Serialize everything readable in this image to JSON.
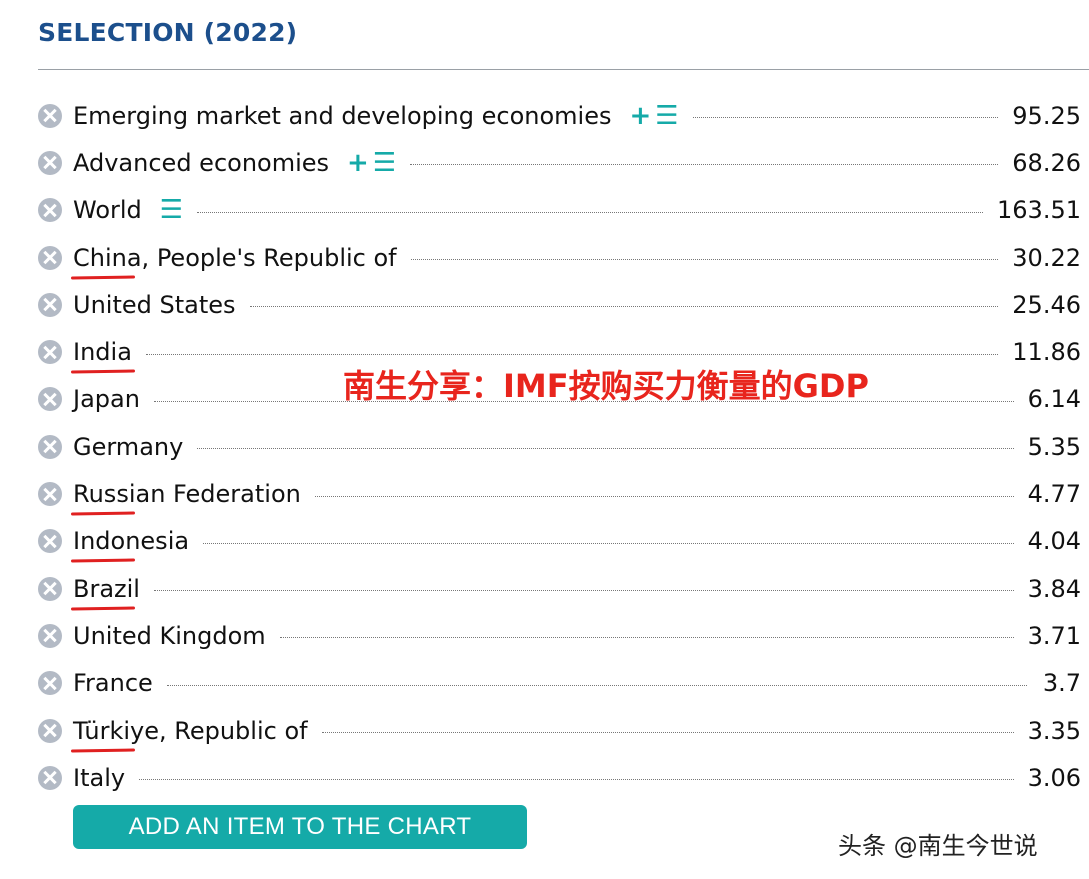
{
  "header": {
    "title": "SELECTION (2022)"
  },
  "items": [
    {
      "name": "Emerging market and developing economies",
      "value": "95.25",
      "actions": [
        "plus-icon",
        "list-icon"
      ],
      "underlined": false
    },
    {
      "name": "Advanced economies",
      "value": "68.26",
      "actions": [
        "plus-icon",
        "list-icon"
      ],
      "underlined": false
    },
    {
      "name": "World",
      "value": "163.51",
      "actions": [
        "list-icon"
      ],
      "underlined": false
    },
    {
      "name": "China, People's Republic of",
      "value": "30.22",
      "actions": [],
      "underlined": true
    },
    {
      "name": "United States",
      "value": "25.46",
      "actions": [],
      "underlined": false
    },
    {
      "name": "India",
      "value": "11.86",
      "actions": [],
      "underlined": true
    },
    {
      "name": "Japan",
      "value": "6.14",
      "actions": [],
      "underlined": false
    },
    {
      "name": "Germany",
      "value": "5.35",
      "actions": [],
      "underlined": false
    },
    {
      "name": "Russian Federation",
      "value": "4.77",
      "actions": [],
      "underlined": true
    },
    {
      "name": "Indonesia",
      "value": "4.04",
      "actions": [],
      "underlined": true
    },
    {
      "name": "Brazil",
      "value": "3.84",
      "actions": [],
      "underlined": true
    },
    {
      "name": "United Kingdom",
      "value": "3.71",
      "actions": [],
      "underlined": false
    },
    {
      "name": "France",
      "value": "3.7",
      "actions": [],
      "underlined": false
    },
    {
      "name": "Türkiye, Republic of",
      "value": "3.35",
      "actions": [],
      "underlined": true
    },
    {
      "name": "Italy",
      "value": "3.06",
      "actions": [],
      "underlined": false
    }
  ],
  "add_button": "ADD AN ITEM TO THE CHART",
  "overlay_caption": "南生分享：IMF按购买力衡量的GDP",
  "watermark": "头条 @南生今世说",
  "colors": {
    "title": "#1c4f8c",
    "accent": "#15aaa8",
    "annotation": "#e02020"
  }
}
